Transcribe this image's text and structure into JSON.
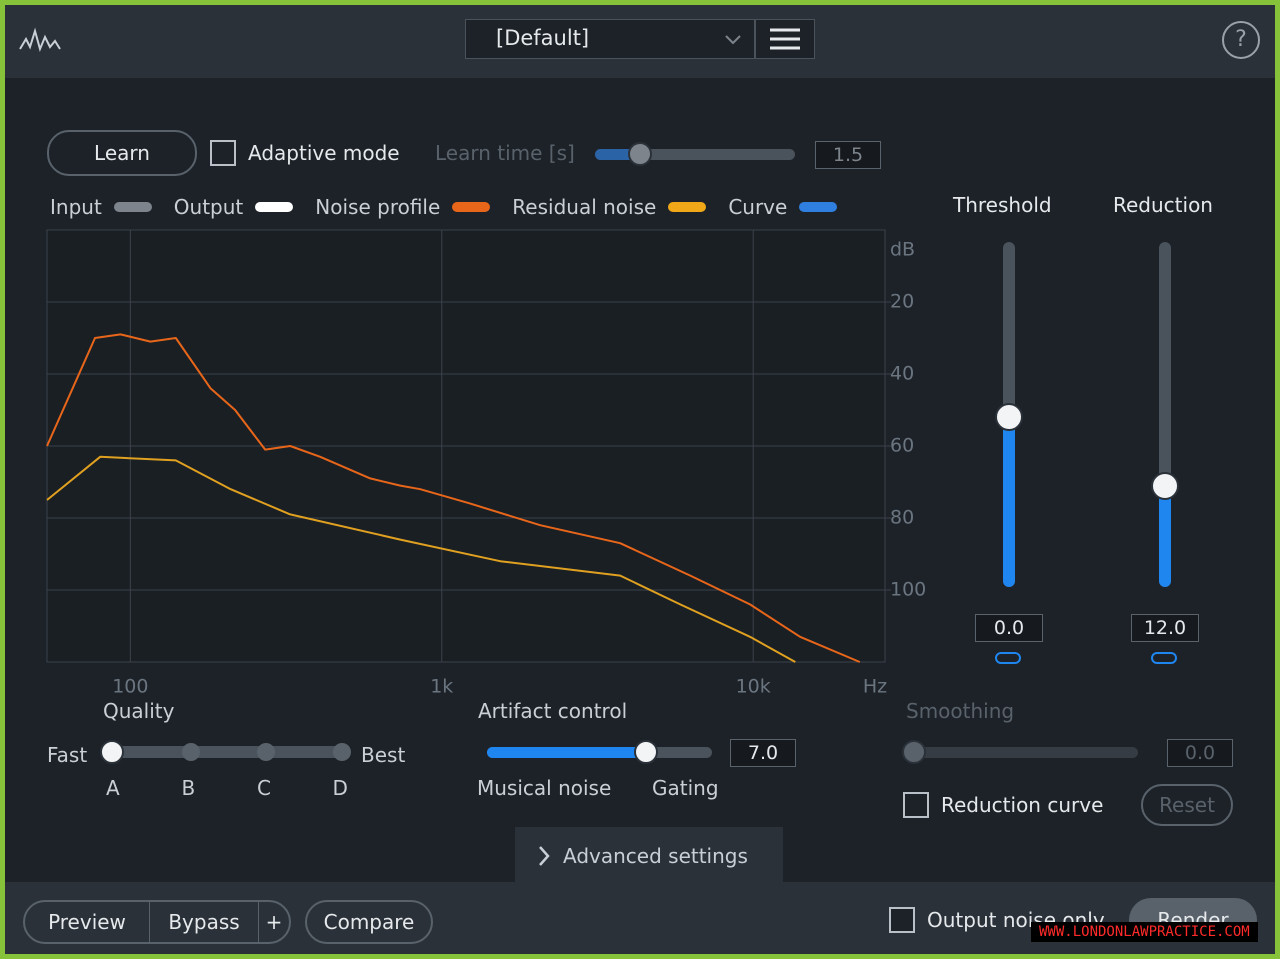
{
  "header": {
    "preset": "[Default]",
    "help": "?"
  },
  "controls": {
    "learn": "Learn",
    "adaptive_mode": "Adaptive mode",
    "learn_time_label": "Learn time [s]",
    "learn_time_value": "1.5"
  },
  "legend": [
    {
      "name": "Input",
      "color": "#7d848c"
    },
    {
      "name": "Output",
      "color": "#ffffff"
    },
    {
      "name": "Noise profile",
      "color": "#e8661a"
    },
    {
      "name": "Residual noise",
      "color": "#f0a818"
    },
    {
      "name": "Curve",
      "color": "#2f7fe0"
    }
  ],
  "chart_data": {
    "type": "line",
    "x_unit": "Hz",
    "y_unit": "dB",
    "xscale": "log",
    "xlim": [
      54,
      26500
    ],
    "ylim": [
      120,
      0
    ],
    "xticks": [
      100,
      {
        "value": 1000,
        "label": "1k"
      },
      {
        "value": 10000,
        "label": "10k"
      }
    ],
    "yticks": [
      20,
      40,
      60,
      80,
      100
    ],
    "grid": true,
    "series": [
      {
        "name": "Noise profile",
        "color": "#e8661a",
        "x": [
          54,
          77,
          93,
          116,
          140,
          181,
          217,
          271,
          326,
          407,
          589,
          736,
          853,
          1235,
          2070,
          3740,
          6280,
          9770,
          14150,
          22000
        ],
        "values": [
          60,
          30,
          29,
          31,
          30,
          44,
          50,
          61,
          60,
          63,
          69,
          71,
          72,
          76,
          82,
          87,
          96,
          104,
          113,
          120
        ]
      },
      {
        "name": "Residual noise",
        "color": "#e0a020",
        "x": [
          54,
          80,
          140,
          210,
          326,
          736,
          1540,
          3740,
          5830,
          9770,
          13650
        ],
        "values": [
          75,
          63,
          64,
          72,
          79,
          86,
          92,
          96,
          104,
          113,
          120
        ]
      }
    ]
  },
  "threshold": {
    "label": "Threshold",
    "value": "0.0"
  },
  "reduction": {
    "label": "Reduction",
    "value": "12.0"
  },
  "quality": {
    "label": "Quality",
    "fast": "Fast",
    "best": "Best",
    "options": [
      "A",
      "B",
      "C",
      "D"
    ]
  },
  "artifact_control": {
    "label": "Artifact control",
    "value": "7.0",
    "left": "Musical noise",
    "right": "Gating"
  },
  "smoothing": {
    "label": "Smoothing",
    "value": "0.0"
  },
  "reduction_curve": "Reduction curve",
  "reset": "Reset",
  "advanced_settings": "Advanced settings",
  "footer": {
    "preview": "Preview",
    "bypass": "Bypass",
    "plus": "+",
    "compare": "Compare",
    "output_noise_only": "Output noise only",
    "render": "Render"
  },
  "watermark": "WWW.LONDONLAWPRACTICE.COM"
}
